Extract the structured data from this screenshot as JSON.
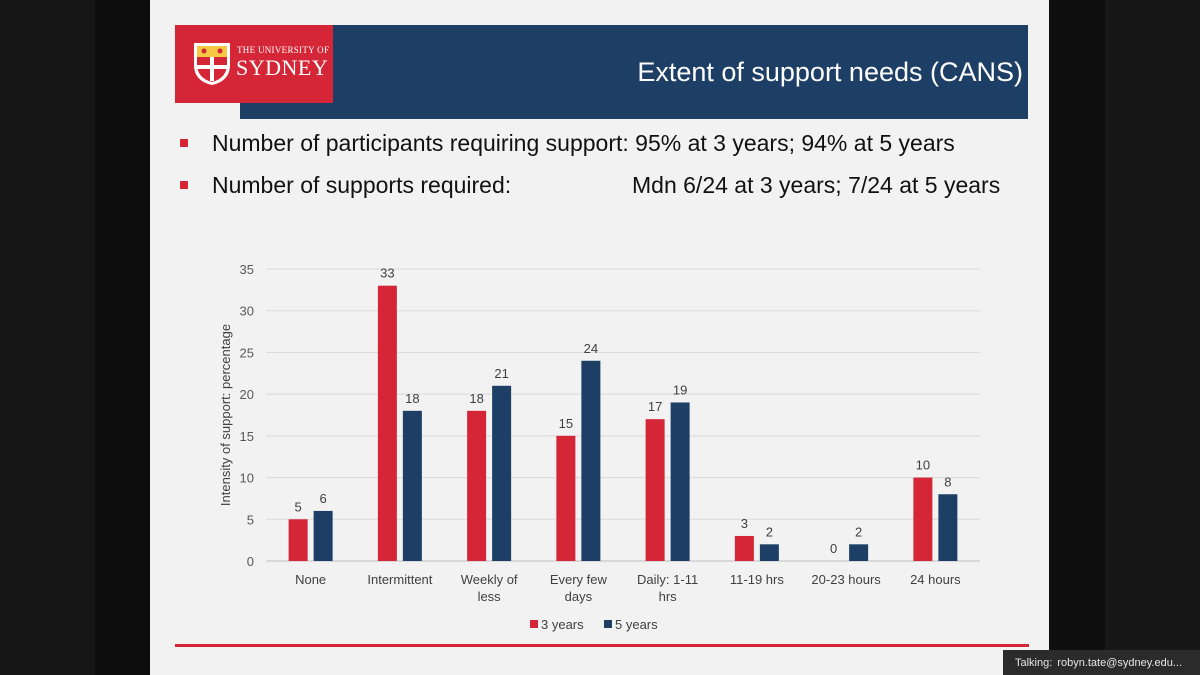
{
  "slide": {
    "logo": {
      "small": "THE UNIVERSITY OF",
      "big": "SYDNEY"
    },
    "title": "Extent of support needs (CANS)",
    "bullets": [
      {
        "text": "Number of participants requiring support: 95% at 3 years; 94% at 5 years"
      },
      {
        "text": "Number of supports required:",
        "right": "Mdn 6/24 at 3 years; 7/24 at 5 years"
      }
    ]
  },
  "colors": {
    "series1": "#d42637",
    "series2": "#1d3f66",
    "brand_red": "#d42637",
    "brand_navy": "#1d3f66"
  },
  "chart_data": {
    "type": "bar",
    "title": "",
    "xlabel": "",
    "ylabel": "Intensity of support: percentage",
    "ylim": [
      0,
      35
    ],
    "yticks": [
      0,
      5,
      10,
      15,
      20,
      25,
      30,
      35
    ],
    "grid": true,
    "legend_position": "bottom",
    "categories": [
      [
        "None"
      ],
      [
        "Intermittent"
      ],
      [
        "Weekly of",
        "less"
      ],
      [
        "Every few",
        "days"
      ],
      [
        "Daily: 1-11",
        "hrs"
      ],
      [
        "11-19 hrs"
      ],
      [
        "20-23 hours"
      ],
      [
        "24 hours"
      ]
    ],
    "series": [
      {
        "name": "3 years",
        "values": [
          5,
          33,
          18,
          15,
          17,
          3,
          0,
          10
        ]
      },
      {
        "name": "5 years",
        "values": [
          6,
          18,
          21,
          24,
          19,
          2,
          2,
          8
        ]
      }
    ]
  },
  "status": {
    "talking_label": "Talking:",
    "talking_name": "robyn.tate@sydney.edu..."
  }
}
